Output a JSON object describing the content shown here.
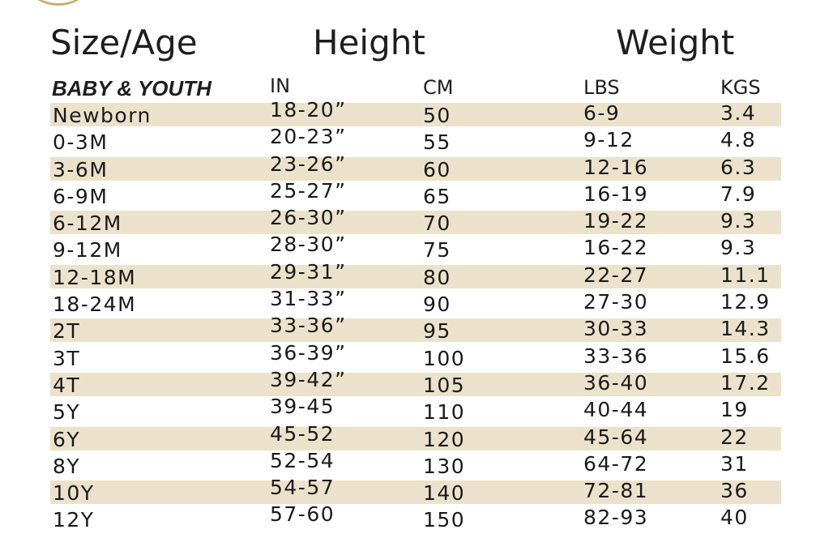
{
  "headers": {
    "size_age": "Size/Age",
    "height": "Height",
    "weight": "Weight"
  },
  "subheaders": {
    "category": "BABY & YOUTH",
    "in": "IN",
    "cm": "CM",
    "lbs": "LBS",
    "kgs": "KGS"
  },
  "colors": {
    "band": "#ece2cb",
    "logo_gold": "#c8ae6e"
  },
  "rows": [
    {
      "size": "Newborn",
      "in": "18-20”",
      "cm": "50",
      "lbs": "6-9",
      "kgs": "3.4"
    },
    {
      "size": "0-3M",
      "in": "20-23”",
      "cm": "55",
      "lbs": "9-12",
      "kgs": "4.8"
    },
    {
      "size": "3-6M",
      "in": "23-26”",
      "cm": "60",
      "lbs": "12-16",
      "kgs": "6.3"
    },
    {
      "size": "6-9M",
      "in": "25-27”",
      "cm": "65",
      "lbs": "16-19",
      "kgs": "7.9"
    },
    {
      "size": "6-12M",
      "in": "26-30”",
      "cm": "70",
      "lbs": "19-22",
      "kgs": "9.3"
    },
    {
      "size": "9-12M",
      "in": "28-30”",
      "cm": "75",
      "lbs": "16-22",
      "kgs": "9.3"
    },
    {
      "size": "12-18M",
      "in": "29-31”",
      "cm": "80",
      "lbs": "22-27",
      "kgs": "11.1"
    },
    {
      "size": "18-24M",
      "in": "31-33”",
      "cm": "90",
      "lbs": "27-30",
      "kgs": "12.9"
    },
    {
      "size": "2T",
      "in": "33-36”",
      "cm": "95",
      "lbs": "30-33",
      "kgs": "14.3"
    },
    {
      "size": "3T",
      "in": "36-39”",
      "cm": "100",
      "lbs": "33-36",
      "kgs": "15.6"
    },
    {
      "size": "4T",
      "in": "39-42”",
      "cm": "105",
      "lbs": "36-40",
      "kgs": "17.2"
    },
    {
      "size": "5Y",
      "in": "39-45",
      "cm": "110",
      "lbs": "40-44",
      "kgs": "19"
    },
    {
      "size": "6Y",
      "in": "45-52",
      "cm": "120",
      "lbs": "45-64",
      "kgs": "22"
    },
    {
      "size": "8Y",
      "in": "52-54",
      "cm": "130",
      "lbs": "64-72",
      "kgs": "31"
    },
    {
      "size": "10Y",
      "in": "54-57",
      "cm": "140",
      "lbs": "72-81",
      "kgs": "36"
    },
    {
      "size": "12Y",
      "in": "57-60",
      "cm": "150",
      "lbs": "82-93",
      "kgs": "40"
    }
  ]
}
